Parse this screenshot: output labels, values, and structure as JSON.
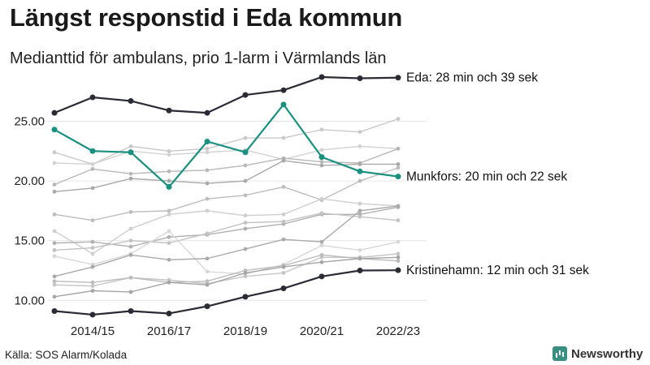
{
  "header": {
    "title": "Längst responstid i Eda kommun",
    "subtitle": "Medianttid för ambulans, prio 1-larm i Värmlands län"
  },
  "footer": {
    "source": "Källa: SOS Alarm/Kolada",
    "brand": "Newsworthy"
  },
  "colors": {
    "eda": "#2b2b36",
    "munkfors": "#1a9080",
    "kristinehamn": "#2b2b36",
    "others": [
      "#c9c9c9",
      "#d3d3d3",
      "#b8b8b8",
      "#a9a9a9",
      "#bdbdbd",
      "#cfcfcf",
      "#b0b0b0",
      "#c3c3c3",
      "#d8d8d8",
      "#aaaaaa",
      "#c6c6c6",
      "#bcbcbc",
      "#a6a6a6"
    ]
  },
  "chart_data": {
    "type": "line",
    "x": [
      "2013/14",
      "2014/15",
      "2015/16",
      "2016/17",
      "2017/18",
      "2018/19",
      "2019/20",
      "2020/21",
      "2021/22",
      "2022/23"
    ],
    "x_tick_labels": [
      "2014/15",
      "2016/17",
      "2018/19",
      "2020/21",
      "2022/23"
    ],
    "y_tick_labels": [
      "10.00",
      "15.00",
      "20.00",
      "25.00"
    ],
    "ylim": [
      9,
      28.7
    ],
    "grid": true,
    "highlighted": [
      {
        "name": "Eda",
        "label": "Eda: 28 min och 39 sek",
        "color_key": "eda",
        "values": [
          25.7,
          27.0,
          26.7,
          25.9,
          25.7,
          27.2,
          27.6,
          28.7,
          28.6,
          28.65
        ]
      },
      {
        "name": "Munkfors",
        "label": "Munkfors: 20 min och 22 sek",
        "color_key": "munkfors",
        "values": [
          24.3,
          22.5,
          22.4,
          19.5,
          23.3,
          22.4,
          26.4,
          22.0,
          20.8,
          20.37
        ]
      },
      {
        "name": "Kristinehamn",
        "label": "Kristinehamn: 12 min och 31 sek",
        "color_key": "kristinehamn",
        "values": [
          9.1,
          8.8,
          9.1,
          8.9,
          9.5,
          10.3,
          11.0,
          12.0,
          12.5,
          12.52
        ]
      }
    ],
    "series": [
      {
        "values": [
          22.4,
          21.4,
          22.9,
          22.5,
          22.7,
          23.6,
          23.6,
          24.3,
          24.1,
          25.2
        ]
      },
      {
        "values": [
          21.5,
          21.4,
          22.5,
          22.2,
          22.4,
          22.6,
          21.8,
          22.6,
          22.9,
          22.7
        ]
      },
      {
        "values": [
          19.7,
          21.0,
          20.6,
          20.8,
          20.9,
          21.3,
          21.9,
          21.6,
          21.5,
          22.7
        ]
      },
      {
        "values": [
          19.1,
          19.4,
          20.2,
          20.0,
          19.8,
          20.0,
          21.7,
          21.3,
          21.4,
          21.4
        ]
      },
      {
        "values": [
          17.2,
          16.7,
          17.4,
          17.5,
          18.5,
          18.8,
          19.5,
          18.4,
          20.0,
          21.1
        ]
      },
      {
        "values": [
          15.8,
          13.9,
          16.0,
          17.2,
          17.5,
          17.1,
          17.2,
          18.5,
          18.1,
          17.9
        ]
      },
      {
        "values": [
          14.8,
          14.9,
          14.5,
          15.3,
          15.5,
          16.0,
          16.4,
          17.2,
          17.2,
          17.8
        ]
      },
      {
        "values": [
          14.2,
          14.4,
          15.0,
          14.8,
          15.6,
          16.5,
          16.6,
          17.3,
          17.0,
          16.7
        ]
      },
      {
        "values": [
          13.7,
          13.0,
          13.9,
          15.8,
          12.4,
          12.2,
          13.0,
          14.6,
          14.2,
          14.9
        ]
      },
      {
        "values": [
          12.0,
          12.8,
          13.8,
          13.4,
          13.5,
          14.3,
          15.1,
          14.9,
          17.5,
          17.9
        ]
      },
      {
        "values": [
          11.3,
          11.2,
          11.9,
          11.7,
          11.4,
          12.0,
          12.3,
          13.6,
          13.6,
          13.9
        ]
      },
      {
        "values": [
          11.6,
          11.5,
          11.9,
          11.5,
          11.6,
          12.5,
          12.9,
          13.8,
          13.5,
          13.3
        ]
      },
      {
        "values": [
          10.3,
          10.8,
          10.7,
          11.5,
          11.3,
          12.3,
          12.8,
          13.2,
          13.5,
          13.6
        ]
      }
    ]
  }
}
